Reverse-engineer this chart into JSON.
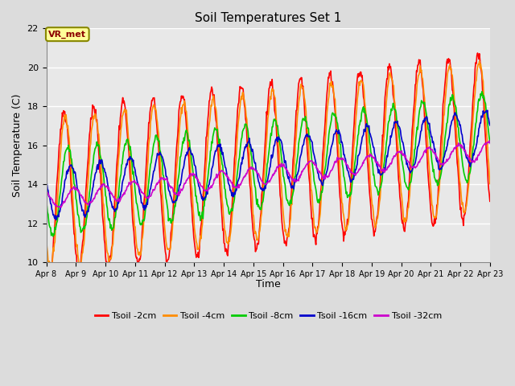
{
  "title": "Soil Temperatures Set 1",
  "xlabel": "Time",
  "ylabel": "Soil Temperature (C)",
  "ylim": [
    10,
    22
  ],
  "yticks": [
    10,
    12,
    14,
    16,
    18,
    20,
    22
  ],
  "fig_bg": "#dcdcdc",
  "plot_bg": "#e8e8e8",
  "annotation_text": "VR_met",
  "annotation_color": "#8B0000",
  "annotation_bg": "#FFFF99",
  "series": {
    "Tsoil -2cm": {
      "color": "#FF0000",
      "lw": 1.2
    },
    "Tsoil -4cm": {
      "color": "#FF8C00",
      "lw": 1.2
    },
    "Tsoil -8cm": {
      "color": "#00CC00",
      "lw": 1.2
    },
    "Tsoil -16cm": {
      "color": "#0000CC",
      "lw": 1.2
    },
    "Tsoil -32cm": {
      "color": "#CC00CC",
      "lw": 1.2
    }
  },
  "xtick_labels": [
    "Apr 8",
    "Apr 9",
    "Apr 10",
    "Apr 11",
    "Apr 12",
    "Apr 13",
    "Apr 14",
    "Apr 15",
    "Apr 16",
    "Apr 17",
    "Apr 18",
    "Apr 19",
    "Apr 20",
    "Apr 21",
    "Apr 22",
    "Apr 23"
  ],
  "n_points": 720,
  "start_day": 0,
  "end_day": 15
}
